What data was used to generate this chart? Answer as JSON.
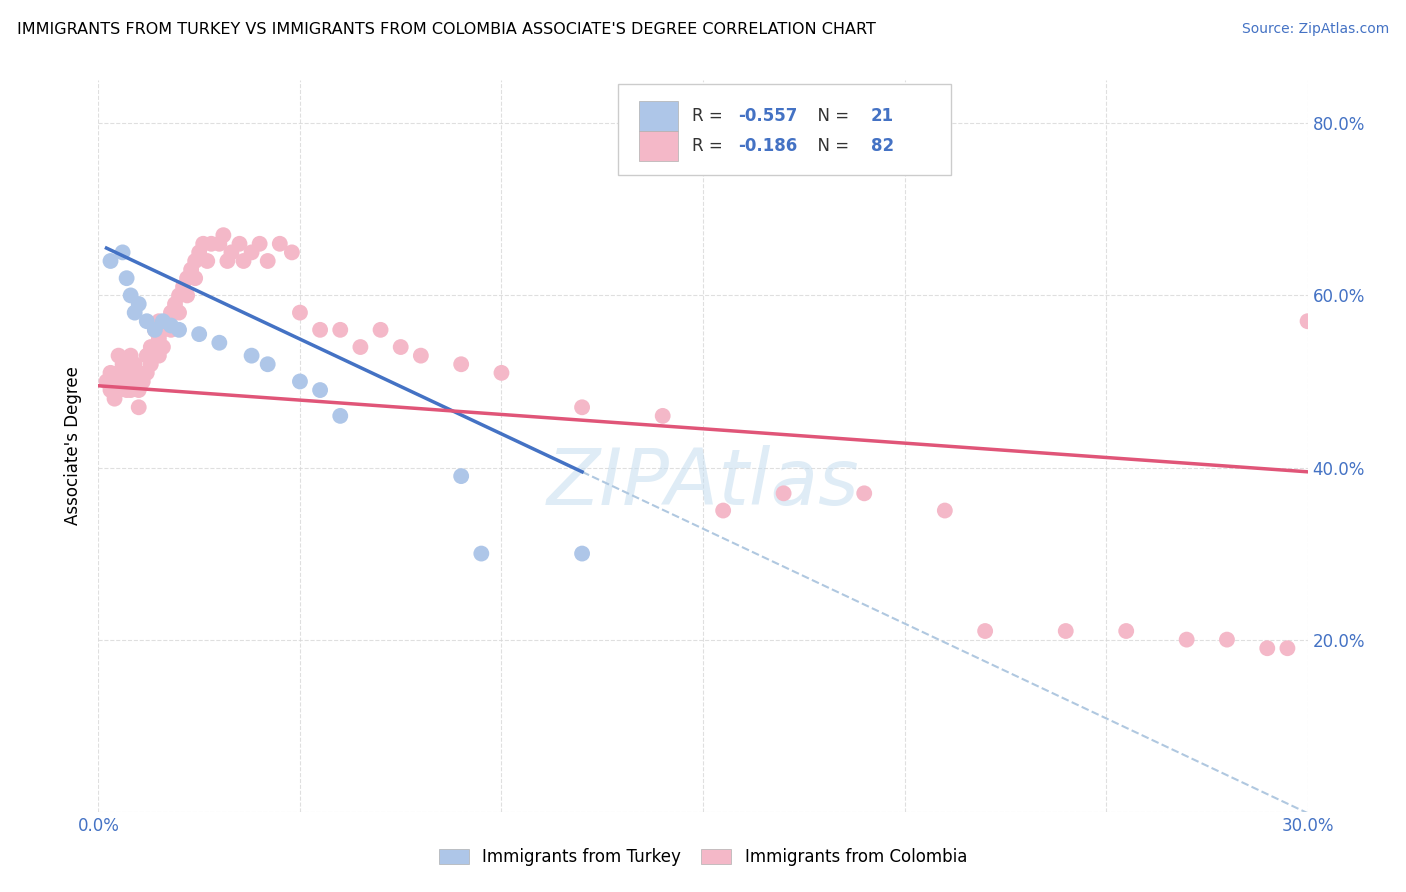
{
  "title": "IMMIGRANTS FROM TURKEY VS IMMIGRANTS FROM COLOMBIA ASSOCIATE'S DEGREE CORRELATION CHART",
  "source": "Source: ZipAtlas.com",
  "ylabel": "Associate's Degree",
  "xlim": [
    0.0,
    0.3
  ],
  "ylim": [
    0.0,
    0.85
  ],
  "x_tick_positions": [
    0.0,
    0.05,
    0.1,
    0.15,
    0.2,
    0.25,
    0.3
  ],
  "x_tick_labels": [
    "0.0%",
    "",
    "",
    "",
    "",
    "",
    "30.0%"
  ],
  "y_tick_positions": [
    0.0,
    0.2,
    0.4,
    0.6,
    0.8
  ],
  "y_tick_labels": [
    "",
    "20.0%",
    "40.0%",
    "60.0%",
    "80.0%"
  ],
  "legend_R_turkey": "-0.557",
  "legend_N_turkey": "21",
  "legend_R_colombia": "-0.186",
  "legend_N_colombia": "82",
  "turkey_color": "#aec6e8",
  "colombia_color": "#f4b8c8",
  "turkey_line_color": "#4472c4",
  "colombia_line_color": "#e05578",
  "dashed_line_color": "#b0c8e0",
  "turkey_scatter_x": [
    0.003,
    0.006,
    0.007,
    0.008,
    0.009,
    0.01,
    0.012,
    0.014,
    0.016,
    0.018,
    0.02,
    0.025,
    0.03,
    0.038,
    0.042,
    0.05,
    0.055,
    0.06,
    0.09,
    0.095,
    0.12
  ],
  "turkey_scatter_y": [
    0.64,
    0.65,
    0.62,
    0.6,
    0.58,
    0.59,
    0.57,
    0.56,
    0.57,
    0.565,
    0.56,
    0.555,
    0.545,
    0.53,
    0.52,
    0.5,
    0.49,
    0.46,
    0.39,
    0.3,
    0.3
  ],
  "colombia_scatter_x": [
    0.002,
    0.003,
    0.003,
    0.004,
    0.004,
    0.005,
    0.005,
    0.005,
    0.006,
    0.006,
    0.007,
    0.007,
    0.008,
    0.008,
    0.008,
    0.009,
    0.009,
    0.01,
    0.01,
    0.01,
    0.011,
    0.012,
    0.012,
    0.013,
    0.013,
    0.014,
    0.014,
    0.015,
    0.015,
    0.015,
    0.016,
    0.016,
    0.017,
    0.018,
    0.018,
    0.019,
    0.02,
    0.02,
    0.021,
    0.022,
    0.022,
    0.023,
    0.024,
    0.024,
    0.025,
    0.026,
    0.027,
    0.028,
    0.03,
    0.031,
    0.032,
    0.033,
    0.035,
    0.036,
    0.038,
    0.04,
    0.042,
    0.045,
    0.048,
    0.05,
    0.055,
    0.06,
    0.065,
    0.07,
    0.075,
    0.08,
    0.09,
    0.1,
    0.12,
    0.14,
    0.155,
    0.17,
    0.19,
    0.21,
    0.22,
    0.24,
    0.255,
    0.27,
    0.28,
    0.29,
    0.295,
    0.3
  ],
  "colombia_scatter_y": [
    0.5,
    0.49,
    0.51,
    0.48,
    0.5,
    0.53,
    0.51,
    0.49,
    0.52,
    0.5,
    0.51,
    0.49,
    0.53,
    0.51,
    0.49,
    0.52,
    0.5,
    0.51,
    0.49,
    0.47,
    0.5,
    0.53,
    0.51,
    0.54,
    0.52,
    0.56,
    0.54,
    0.57,
    0.55,
    0.53,
    0.56,
    0.54,
    0.57,
    0.58,
    0.56,
    0.59,
    0.6,
    0.58,
    0.61,
    0.62,
    0.6,
    0.63,
    0.64,
    0.62,
    0.65,
    0.66,
    0.64,
    0.66,
    0.66,
    0.67,
    0.64,
    0.65,
    0.66,
    0.64,
    0.65,
    0.66,
    0.64,
    0.66,
    0.65,
    0.58,
    0.56,
    0.56,
    0.54,
    0.56,
    0.54,
    0.53,
    0.52,
    0.51,
    0.47,
    0.46,
    0.35,
    0.37,
    0.37,
    0.35,
    0.21,
    0.21,
    0.21,
    0.2,
    0.2,
    0.19,
    0.19,
    0.57
  ]
}
